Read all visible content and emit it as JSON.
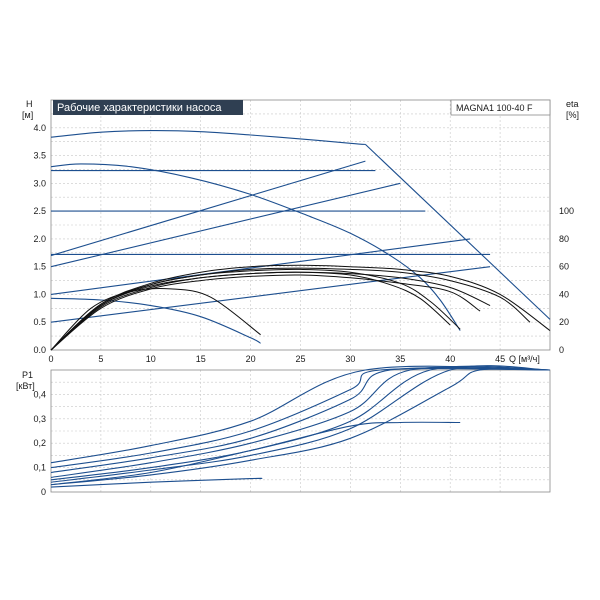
{
  "chart_data": [
    {
      "type": "line",
      "title": "Рабочие характеристики насоса",
      "model": "MAGNA1 100-40 F",
      "y_label_top": "H",
      "y_unit": "[м]",
      "y2_label_top": "eta",
      "y2_unit": "[%]",
      "x_label": "Q [м³/ч]",
      "xlim": [
        0,
        50
      ],
      "ylim": [
        0,
        4.5
      ],
      "y2lim": [
        0,
        180
      ],
      "x_ticks": [
        "0",
        "5",
        "10",
        "15",
        "20",
        "25",
        "30",
        "35",
        "40",
        "45"
      ],
      "y_ticks": [
        "0.0",
        "0.5",
        "1.0",
        "1.5",
        "2.0",
        "2.5",
        "3.0",
        "3.5",
        "4.0"
      ],
      "y2_ticks": [
        "0",
        "20",
        "40",
        "60",
        "80",
        "100"
      ],
      "grid": true,
      "head_curves": [
        {
          "x": [
            0,
            5,
            10,
            15,
            20,
            25,
            30,
            31.5
          ],
          "y": [
            3.83,
            3.92,
            3.95,
            3.93,
            3.87,
            3.8,
            3.72,
            3.7
          ]
        },
        {
          "x": [
            31.5,
            50
          ],
          "y": [
            3.7,
            0.55
          ]
        },
        {
          "x": [
            0,
            3,
            8,
            14,
            20,
            26,
            30,
            34,
            37,
            39,
            41
          ],
          "y": [
            3.3,
            3.35,
            3.3,
            3.1,
            2.8,
            2.4,
            2.1,
            1.7,
            1.3,
            0.9,
            0.35
          ]
        },
        {
          "x": [
            0,
            5,
            10,
            15,
            20,
            21
          ],
          "y": [
            0.93,
            0.9,
            0.8,
            0.6,
            0.22,
            0.12
          ]
        },
        {
          "x": [
            0,
            32.5
          ],
          "y": [
            3.23,
            3.23
          ]
        },
        {
          "x": [
            0,
            37.5
          ],
          "y": [
            2.5,
            2.5
          ]
        },
        {
          "x": [
            0,
            44
          ],
          "y": [
            1.72,
            1.72
          ]
        },
        {
          "x": [
            0,
            31.5
          ],
          "y": [
            1.7,
            3.4
          ]
        },
        {
          "x": [
            0,
            35
          ],
          "y": [
            1.5,
            3.0
          ]
        },
        {
          "x": [
            0,
            42
          ],
          "y": [
            1.0,
            2.0
          ]
        },
        {
          "x": [
            0,
            44
          ],
          "y": [
            0.5,
            1.5
          ]
        }
      ],
      "efficiency_curves": [
        {
          "x": [
            0,
            4,
            8,
            12,
            16,
            21
          ],
          "y": [
            0,
            30,
            42,
            44,
            38,
            11
          ]
        },
        {
          "x": [
            0,
            5,
            10,
            15,
            20,
            25,
            30,
            35,
            38,
            41
          ],
          "y": [
            0,
            33,
            47,
            54,
            57,
            58,
            56,
            48,
            35,
            15
          ]
        },
        {
          "x": [
            0,
            5,
            10,
            15,
            20,
            25,
            30,
            34,
            37,
            40
          ],
          "y": [
            0,
            32,
            46,
            52,
            55,
            56,
            54,
            47,
            37,
            18
          ]
        },
        {
          "x": [
            0,
            5,
            10,
            15,
            20,
            25,
            30,
            35,
            40,
            45,
            50
          ],
          "y": [
            0,
            33,
            48,
            56,
            60,
            61,
            60,
            58,
            53,
            40,
            14
          ]
        },
        {
          "x": [
            0,
            5,
            10,
            15,
            20,
            25,
            30,
            35,
            40,
            45,
            48
          ],
          "y": [
            0,
            32,
            47,
            54,
            58,
            59,
            58,
            56,
            50,
            38,
            20
          ]
        },
        {
          "x": [
            0,
            5,
            10,
            15,
            20,
            25,
            30,
            35,
            40,
            44
          ],
          "y": [
            0,
            31,
            45,
            52,
            55,
            56,
            55,
            52,
            45,
            32
          ]
        },
        {
          "x": [
            0,
            5,
            10,
            15,
            20,
            25,
            30,
            35,
            40,
            43
          ],
          "y": [
            0,
            30,
            44,
            50,
            53,
            54,
            52,
            48,
            42,
            28
          ]
        }
      ]
    },
    {
      "type": "line",
      "y_label_top": "P1",
      "y_unit": "[кВт]",
      "xlim": [
        0,
        50
      ],
      "ylim": [
        0,
        0.5
      ],
      "y_ticks": [
        "0",
        "0,1",
        "0,2",
        "0,3",
        "0,4"
      ],
      "grid": true,
      "power_curves": [
        {
          "x": [
            0,
            10,
            20,
            31.5,
            50
          ],
          "y": [
            0.12,
            0.19,
            0.29,
            0.52,
            0.52
          ]
        },
        {
          "x": [
            0,
            10,
            20,
            30,
            33,
            50
          ],
          "y": [
            0.1,
            0.16,
            0.25,
            0.42,
            0.52,
            0.52
          ]
        },
        {
          "x": [
            0,
            10,
            20,
            30,
            34,
            50
          ],
          "y": [
            0.08,
            0.14,
            0.22,
            0.38,
            0.52,
            0.52
          ]
        },
        {
          "x": [
            0,
            10,
            20,
            30,
            36,
            50
          ],
          "y": [
            0.06,
            0.12,
            0.2,
            0.33,
            0.52,
            0.52
          ]
        },
        {
          "x": [
            0,
            10,
            20,
            30,
            38,
            50
          ],
          "y": [
            0.05,
            0.1,
            0.17,
            0.29,
            0.52,
            0.52
          ]
        },
        {
          "x": [
            0,
            10,
            20,
            30,
            40,
            50
          ],
          "y": [
            0.04,
            0.09,
            0.15,
            0.26,
            0.52,
            0.52
          ]
        },
        {
          "x": [
            0,
            10,
            20,
            30,
            40,
            43,
            50
          ],
          "y": [
            0.03,
            0.07,
            0.13,
            0.22,
            0.43,
            0.52,
            0.52
          ]
        },
        {
          "x": [
            0,
            10,
            20,
            30,
            35,
            41
          ],
          "y": [
            0.03,
            0.08,
            0.17,
            0.27,
            0.285,
            0.285
          ]
        },
        {
          "x": [
            0,
            10,
            20,
            21
          ],
          "y": [
            0.02,
            0.04,
            0.055,
            0.055
          ]
        }
      ]
    }
  ],
  "colors": {
    "curve": "#1d4f8f",
    "efficiency": "#111111",
    "title_bg": "#2f3f52"
  }
}
